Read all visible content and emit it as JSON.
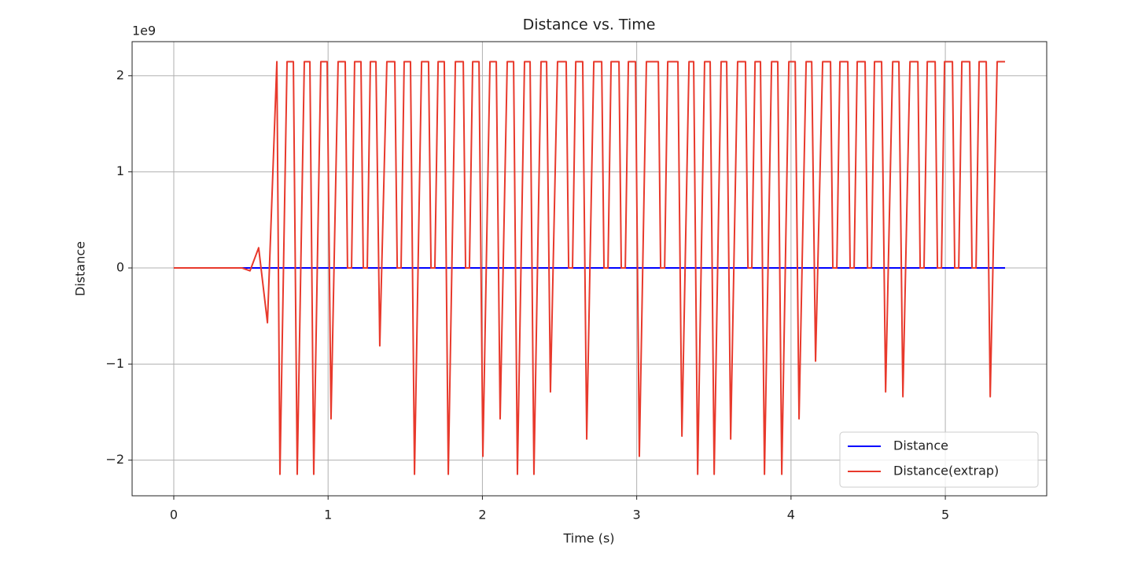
{
  "chart_data": {
    "type": "line",
    "title": "Distance vs. Time",
    "x_label": "Time (s)",
    "y_label": "Distance",
    "y_offset_label": "1e9",
    "xlim": [
      -0.27,
      5.657
    ],
    "ylim": [
      -2.371,
      2.355
    ],
    "xticks": [
      0,
      1,
      2,
      3,
      4,
      5
    ],
    "yticks": [
      {
        "value": -2,
        "label": "−2"
      },
      {
        "value": -1,
        "label": "−1"
      },
      0,
      1,
      2
    ],
    "grid": true,
    "legend": "lower right",
    "series": [
      {
        "name": "Distance",
        "color": "#0000ff",
        "x": [
          0,
          5.387
        ],
        "values": [
          0,
          0
        ]
      },
      {
        "name": "Distance(extrap)",
        "color": "#e8392c",
        "x": [
          0,
          0.443,
          0.494,
          0.55,
          0.607,
          0.668,
          0.688,
          0.734,
          0.775,
          0.8,
          0.846,
          0.882,
          0.907,
          0.953,
          0.994,
          1.019,
          1.065,
          1.111,
          1.126,
          1.152,
          1.172,
          1.213,
          1.228,
          1.254,
          1.274,
          1.31,
          1.335,
          1.381,
          1.432,
          1.448,
          1.473,
          1.493,
          1.534,
          1.56,
          1.606,
          1.651,
          1.667,
          1.692,
          1.713,
          1.753,
          1.779,
          1.825,
          1.876,
          1.891,
          1.916,
          1.937,
          1.978,
          2.003,
          2.049,
          2.09,
          2.115,
          2.161,
          2.202,
          2.227,
          2.273,
          2.309,
          2.334,
          2.38,
          2.416,
          2.441,
          2.487,
          2.543,
          2.559,
          2.584,
          2.605,
          2.65,
          2.676,
          2.722,
          2.773,
          2.788,
          2.814,
          2.834,
          2.885,
          2.9,
          2.926,
          2.946,
          2.992,
          3.017,
          3.063,
          3.14,
          3.155,
          3.181,
          3.201,
          3.267,
          3.293,
          3.339,
          3.369,
          3.395,
          3.44,
          3.476,
          3.502,
          3.547,
          3.583,
          3.609,
          3.654,
          3.705,
          3.721,
          3.746,
          3.767,
          3.802,
          3.828,
          3.874,
          3.914,
          3.94,
          3.986,
          4.027,
          4.052,
          4.098,
          4.134,
          4.159,
          4.205,
          4.256,
          4.271,
          4.297,
          4.317,
          4.368,
          4.383,
          4.409,
          4.429,
          4.48,
          4.496,
          4.521,
          4.541,
          4.587,
          4.613,
          4.659,
          4.699,
          4.725,
          4.771,
          4.822,
          4.837,
          4.862,
          4.883,
          4.934,
          4.949,
          4.975,
          4.995,
          5.046,
          5.061,
          5.087,
          5.107,
          5.158,
          5.173,
          5.199,
          5.219,
          5.265,
          5.291,
          5.336,
          5.387
        ],
        "values": [
          0,
          0,
          -0.03,
          0.21,
          -0.57,
          2.147,
          -2.147,
          2.147,
          2.147,
          -2.147,
          2.147,
          2.147,
          -2.147,
          2.147,
          2.147,
          -1.57,
          2.147,
          2.147,
          0,
          0,
          2.147,
          2.147,
          0,
          0,
          2.147,
          2.147,
          -0.81,
          2.147,
          2.147,
          0,
          0,
          2.147,
          2.147,
          -2.147,
          2.147,
          2.147,
          0,
          0,
          2.147,
          2.147,
          -2.147,
          2.147,
          2.147,
          0,
          0,
          2.147,
          2.147,
          -1.96,
          2.147,
          2.147,
          -1.57,
          2.147,
          2.147,
          -2.147,
          2.147,
          2.147,
          -2.147,
          2.147,
          2.147,
          -1.29,
          2.147,
          2.147,
          0,
          0,
          2.147,
          2.147,
          -1.78,
          2.147,
          2.147,
          0,
          0,
          2.147,
          2.147,
          0,
          0,
          2.147,
          2.147,
          -1.96,
          2.147,
          2.147,
          0,
          0,
          2.147,
          2.147,
          -1.75,
          2.147,
          2.147,
          -2.147,
          2.147,
          2.147,
          -2.147,
          2.147,
          2.147,
          -1.78,
          2.147,
          2.147,
          0,
          0,
          2.147,
          2.147,
          -2.147,
          2.147,
          2.147,
          -2.147,
          2.147,
          2.147,
          -1.57,
          2.147,
          2.147,
          -0.97,
          2.147,
          2.147,
          0,
          0,
          2.147,
          2.147,
          0,
          0,
          2.147,
          2.147,
          0,
          0,
          2.147,
          2.147,
          -1.29,
          2.147,
          2.147,
          -1.34,
          2.147,
          2.147,
          0,
          0,
          2.147,
          2.147,
          0,
          0,
          2.147,
          2.147,
          0,
          0,
          2.147,
          2.147,
          0,
          0,
          2.147,
          2.147,
          -1.34,
          2.147,
          2.147
        ]
      }
    ]
  }
}
